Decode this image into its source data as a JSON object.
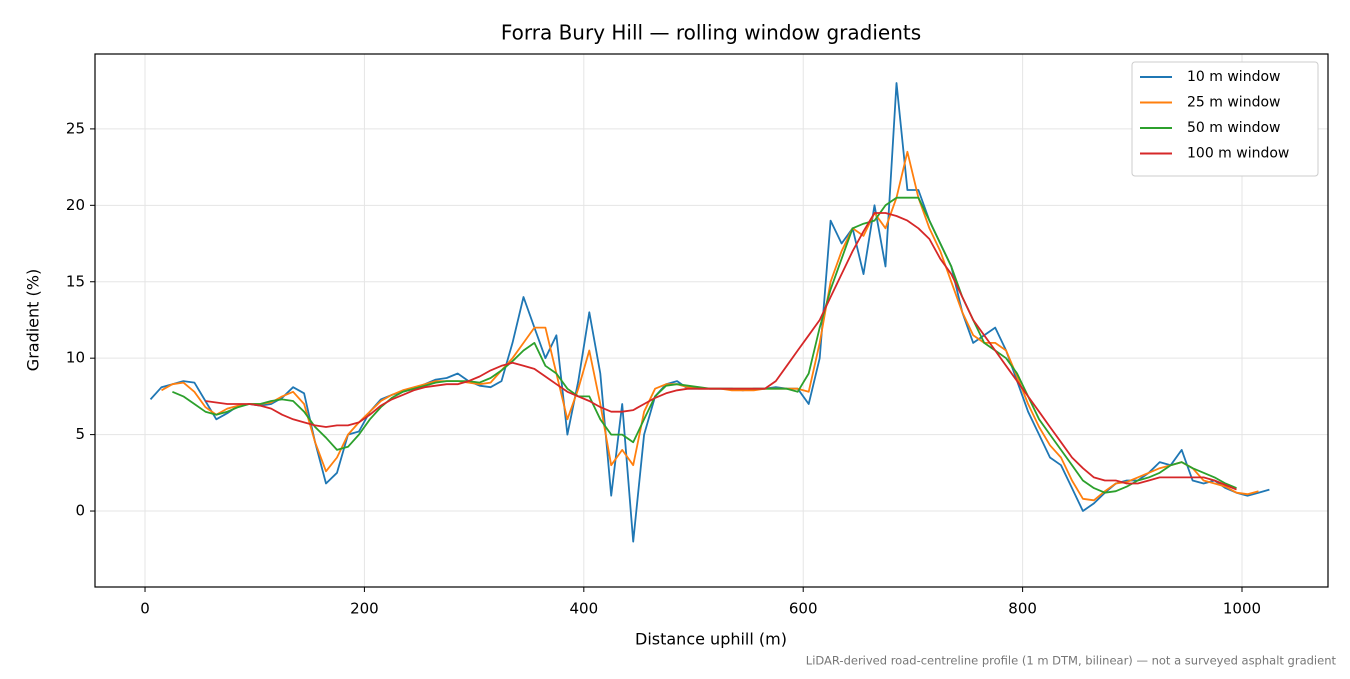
{
  "chart_data": {
    "type": "line",
    "title": "Forra Bury Hill — rolling window gradients",
    "x_label": "Distance uphill (m)",
    "y_label": "Gradient (%)",
    "footnote": "LiDAR-derived road-centreline profile (1 m DTM, bilinear) — not a surveyed asphalt gradient",
    "xlim": [
      -45.6,
      1078.4
    ],
    "ylim": [
      -4.97,
      29.9
    ],
    "xticks": [
      0,
      200,
      400,
      600,
      800,
      1000
    ],
    "yticks": [
      0,
      5,
      10,
      15,
      20,
      25
    ],
    "grid": true,
    "legend": "upper right",
    "x": [
      5,
      15,
      25,
      35,
      45,
      55,
      65,
      75,
      85,
      95,
      105,
      115,
      125,
      135,
      145,
      155,
      165,
      175,
      185,
      195,
      205,
      215,
      225,
      235,
      245,
      255,
      265,
      275,
      285,
      295,
      305,
      315,
      325,
      335,
      345,
      355,
      365,
      375,
      385,
      395,
      405,
      415,
      425,
      435,
      445,
      455,
      465,
      475,
      485,
      495,
      505,
      515,
      525,
      535,
      545,
      555,
      565,
      575,
      585,
      595,
      605,
      615,
      625,
      635,
      645,
      655,
      665,
      675,
      685,
      695,
      705,
      715,
      725,
      735,
      745,
      755,
      765,
      775,
      785,
      795,
      805,
      815,
      825,
      835,
      845,
      855,
      865,
      875,
      885,
      895,
      905,
      915,
      925,
      935,
      945,
      955,
      965,
      975,
      985,
      995,
      1005,
      1015,
      1025
    ],
    "series": [
      {
        "name": "10 m window",
        "color": "#1f77b4",
        "values": [
          7.3,
          8.1,
          8.3,
          8.5,
          8.4,
          7.2,
          6.0,
          6.4,
          6.9,
          7.0,
          6.9,
          7.0,
          7.4,
          8.1,
          7.7,
          4.5,
          1.8,
          2.5,
          5.0,
          5.2,
          6.5,
          7.3,
          7.6,
          7.8,
          8.0,
          8.3,
          8.6,
          8.7,
          9.0,
          8.5,
          8.2,
          8.1,
          8.5,
          11.0,
          14.0,
          12.0,
          10.0,
          11.5,
          5.0,
          8.5,
          13.0,
          9.0,
          1.0,
          7.0,
          -2.0,
          5.0,
          7.5,
          8.3,
          8.5,
          8.0,
          8.0,
          8.0,
          8.0,
          8.0,
          7.9,
          8.0,
          8.0,
          8.1,
          8.0,
          8.0,
          7.0,
          10.0,
          19.0,
          17.5,
          18.5,
          15.5,
          20.0,
          16.0,
          28.0,
          21.0,
          21.0,
          19.0,
          17.5,
          16.0,
          13.0,
          11.0,
          11.5,
          12.0,
          10.5,
          8.5,
          6.5,
          5.0,
          3.5,
          3.0,
          1.5,
          0.0,
          0.5,
          1.2,
          1.8,
          2.0,
          2.0,
          2.5,
          3.2,
          3.0,
          4.0,
          2.0,
          1.8,
          2.0,
          1.5,
          1.2,
          1.0,
          1.2,
          1.4
        ]
      },
      {
        "name": "25 m window",
        "color": "#ff7f0e",
        "values": [
          null,
          7.9,
          8.3,
          8.4,
          7.8,
          6.8,
          6.3,
          6.7,
          6.9,
          7.0,
          7.0,
          7.1,
          7.5,
          7.8,
          7.0,
          4.5,
          2.6,
          3.5,
          5.0,
          5.8,
          6.5,
          7.2,
          7.6,
          7.9,
          8.1,
          8.3,
          8.5,
          8.5,
          8.5,
          8.4,
          8.3,
          8.4,
          9.2,
          10.0,
          11.0,
          12.0,
          12.0,
          9.0,
          6.0,
          8.0,
          10.5,
          7.0,
          3.0,
          4.0,
          3.0,
          6.5,
          8.0,
          8.3,
          8.3,
          8.1,
          8.0,
          8.0,
          8.0,
          7.9,
          7.9,
          7.9,
          8.0,
          8.0,
          8.0,
          8.0,
          7.8,
          11.0,
          15.0,
          17.0,
          18.5,
          18.0,
          19.5,
          18.5,
          20.5,
          23.5,
          20.5,
          18.5,
          17.0,
          15.0,
          13.0,
          11.5,
          11.0,
          11.0,
          10.5,
          8.8,
          7.0,
          5.5,
          4.3,
          3.5,
          2.0,
          0.8,
          0.7,
          1.3,
          1.8,
          1.9,
          2.2,
          2.5,
          2.8,
          3.0,
          3.2,
          2.8,
          2.0,
          1.8,
          1.6,
          1.2,
          1.1,
          1.3,
          null
        ]
      },
      {
        "name": "50 m window",
        "color": "#2ca02c",
        "values": [
          null,
          null,
          7.8,
          7.5,
          7.0,
          6.5,
          6.3,
          6.5,
          6.8,
          7.0,
          7.0,
          7.2,
          7.3,
          7.2,
          6.5,
          5.5,
          4.8,
          4.0,
          4.2,
          5.0,
          6.0,
          6.8,
          7.4,
          7.8,
          8.0,
          8.2,
          8.4,
          8.5,
          8.5,
          8.5,
          8.4,
          8.7,
          9.2,
          9.8,
          10.5,
          11.0,
          9.5,
          9.0,
          8.0,
          7.5,
          7.5,
          6.0,
          5.0,
          5.0,
          4.5,
          6.0,
          7.5,
          8.2,
          8.3,
          8.2,
          8.1,
          8.0,
          8.0,
          8.0,
          8.0,
          8.0,
          8.0,
          8.0,
          8.0,
          7.8,
          9.0,
          12.0,
          14.5,
          16.5,
          18.5,
          18.8,
          19.0,
          20.0,
          20.5,
          20.5,
          20.5,
          19.0,
          17.5,
          16.0,
          14.0,
          12.5,
          11.0,
          10.5,
          10.0,
          9.0,
          7.5,
          6.0,
          5.0,
          4.0,
          3.0,
          2.0,
          1.5,
          1.2,
          1.3,
          1.6,
          2.0,
          2.2,
          2.5,
          3.0,
          3.2,
          2.8,
          2.5,
          2.2,
          1.8,
          1.5,
          null,
          null,
          null
        ]
      },
      {
        "name": "100 m window",
        "color": "#d62728",
        "values": [
          null,
          null,
          null,
          null,
          null,
          7.2,
          7.1,
          7.0,
          7.0,
          7.0,
          6.9,
          6.7,
          6.3,
          6.0,
          5.8,
          5.6,
          5.5,
          5.6,
          5.6,
          5.8,
          6.3,
          6.9,
          7.3,
          7.6,
          7.9,
          8.1,
          8.2,
          8.3,
          8.3,
          8.5,
          8.8,
          9.2,
          9.5,
          9.7,
          9.5,
          9.3,
          8.8,
          8.3,
          7.8,
          7.5,
          7.2,
          6.8,
          6.5,
          6.5,
          6.6,
          7.0,
          7.4,
          7.7,
          7.9,
          8.0,
          8.0,
          8.0,
          8.0,
          8.0,
          8.0,
          8.0,
          8.0,
          8.5,
          9.5,
          10.5,
          11.5,
          12.5,
          14.0,
          15.5,
          17.0,
          18.3,
          19.5,
          19.5,
          19.3,
          19.0,
          18.5,
          17.8,
          16.5,
          15.5,
          14.0,
          12.5,
          11.5,
          10.5,
          9.5,
          8.5,
          7.5,
          6.5,
          5.5,
          4.5,
          3.5,
          2.8,
          2.2,
          2.0,
          2.0,
          1.8,
          1.8,
          2.0,
          2.2,
          2.2,
          2.2,
          2.2,
          2.2,
          2.0,
          1.7,
          1.4,
          null,
          null,
          null
        ]
      }
    ]
  }
}
